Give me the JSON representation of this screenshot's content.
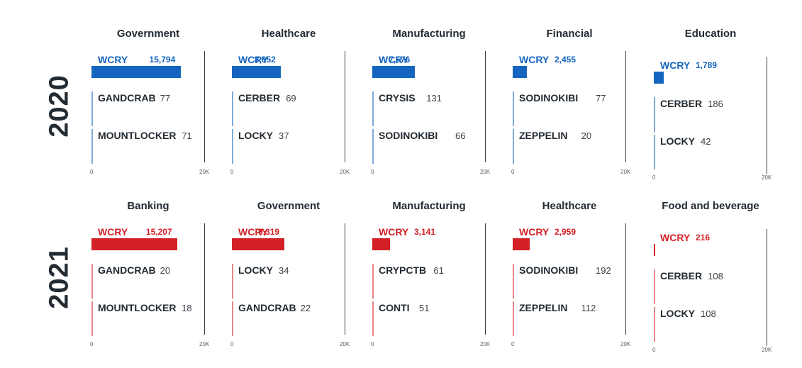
{
  "years": [
    "2020",
    "2021"
  ],
  "colors": {
    "2020": "#1565c0",
    "2021": "#d32027",
    "text": "#232b33"
  },
  "axis": {
    "min_label": "0",
    "max_label": "20K"
  },
  "chart_data": [
    {
      "type": "bar",
      "year": "2020",
      "title": "Government",
      "xlim": [
        0,
        20000
      ],
      "categories": [
        "WCRY",
        "GANDCRAB",
        "MOUNTLOCKER"
      ],
      "values": [
        15794,
        77,
        71
      ],
      "labels": [
        "15,794",
        "77",
        "71"
      ]
    },
    {
      "type": "bar",
      "year": "2020",
      "title": "Healthcare",
      "xlim": [
        0,
        20000
      ],
      "categories": [
        "WCRY",
        "CERBER",
        "LOCKY"
      ],
      "values": [
        8652,
        69,
        37
      ],
      "labels": [
        "8,652",
        "69",
        "37"
      ]
    },
    {
      "type": "bar",
      "year": "2020",
      "title": "Manufacturing",
      "xlim": [
        0,
        20000
      ],
      "categories": [
        "WCRY",
        "CRYSIS",
        "SODINOKIBI"
      ],
      "values": [
        7576,
        131,
        66
      ],
      "labels": [
        "7,576",
        "131",
        "66"
      ]
    },
    {
      "type": "bar",
      "year": "2020",
      "title": "Financial",
      "xlim": [
        0,
        20000
      ],
      "categories": [
        "WCRY",
        "SODINOKIBI",
        "ZEPPELIN"
      ],
      "values": [
        2455,
        77,
        20
      ],
      "labels": [
        "2,455",
        "77",
        "20"
      ]
    },
    {
      "type": "bar",
      "year": "2020",
      "title": "Education",
      "xlim": [
        0,
        20000
      ],
      "categories": [
        "WCRY",
        "CERBER",
        "LOCKY"
      ],
      "values": [
        1789,
        186,
        42
      ],
      "labels": [
        "1,789",
        "186",
        "42"
      ]
    },
    {
      "type": "bar",
      "year": "2021",
      "title": "Banking",
      "xlim": [
        0,
        20000
      ],
      "categories": [
        "WCRY",
        "GANDCRAB",
        "MOUNTLOCKER"
      ],
      "values": [
        15207,
        20,
        18
      ],
      "labels": [
        "15,207",
        "20",
        "18"
      ]
    },
    {
      "type": "bar",
      "year": "2021",
      "title": "Government",
      "xlim": [
        0,
        20000
      ],
      "categories": [
        "WCRY",
        "LOCKY",
        "GANDCRAB"
      ],
      "values": [
        9319,
        34,
        22
      ],
      "labels": [
        "9,319",
        "34",
        "22"
      ]
    },
    {
      "type": "bar",
      "year": "2021",
      "title": "Manufacturing",
      "xlim": [
        0,
        20000
      ],
      "categories": [
        "WCRY",
        "CRYPCTB",
        "CONTI"
      ],
      "values": [
        3141,
        61,
        51
      ],
      "labels": [
        "3,141",
        "61",
        "51"
      ]
    },
    {
      "type": "bar",
      "year": "2021",
      "title": "Healthcare",
      "xlim": [
        0,
        20000
      ],
      "categories": [
        "WCRY",
        "SODINOKIBI",
        "ZEPPELIN"
      ],
      "values": [
        2959,
        192,
        112
      ],
      "labels": [
        "2,959",
        "192",
        "112"
      ]
    },
    {
      "type": "bar",
      "year": "2021",
      "title": "Food and beverage",
      "xlim": [
        0,
        20000
      ],
      "categories": [
        "WCRY",
        "CERBER",
        "LOCKY"
      ],
      "values": [
        216,
        108,
        108
      ],
      "labels": [
        "216",
        "108",
        "108"
      ]
    }
  ]
}
